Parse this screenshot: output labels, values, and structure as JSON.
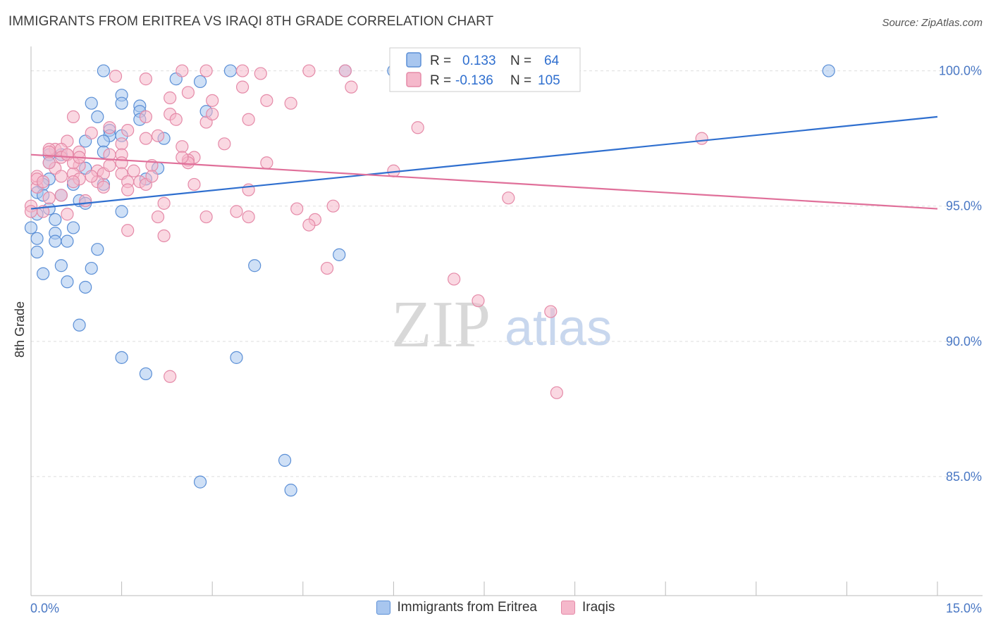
{
  "header": {
    "title": "IMMIGRANTS FROM ERITREA VS IRAQI 8TH GRADE CORRELATION CHART",
    "source": "Source: ZipAtlas.com"
  },
  "watermark": {
    "zip": "ZIP",
    "atlas": "atlas"
  },
  "colors": {
    "blue_fill": "#a8c6ef",
    "blue_stroke": "#5b8fd6",
    "blue_line": "#2f6fcf",
    "pink_fill": "#f5b8cb",
    "pink_stroke": "#e58aa8",
    "pink_line": "#e0709a",
    "tick_text": "#4a78c4",
    "grid": "#dddddd"
  },
  "legend": {
    "rows": [
      {
        "r_label": "R =",
        "r_value": "0.133",
        "n_label": "N =",
        "n_value": "64"
      },
      {
        "r_label": "R =",
        "r_value": "-0.136",
        "n_label": "N =",
        "n_value": "105"
      }
    ]
  },
  "bottom_legend": {
    "series_a": "Immigrants from Eritrea",
    "series_b": "Iraqis"
  },
  "chart_data": {
    "type": "scatter",
    "title": "IMMIGRANTS FROM ERITREA VS IRAQI 8TH GRADE CORRELATION CHART",
    "xlabel": "",
    "ylabel": "8th Grade",
    "xlim": [
      0,
      15
    ],
    "ylim": [
      80.6,
      100.9
    ],
    "x_tick_labels": [
      "0.0%",
      "15.0%"
    ],
    "y_ticks": [
      85,
      90,
      95,
      100
    ],
    "y_tick_labels": [
      "85.0%",
      "90.0%",
      "95.0%",
      "100.0%"
    ],
    "grid": true,
    "legend_placement": "top-center",
    "series": [
      {
        "name": "Immigrants from Eritrea",
        "color": "#a8c6ef",
        "trend": {
          "x": [
            0,
            15
          ],
          "y": [
            94.9,
            98.3
          ]
        },
        "points": [
          [
            1.2,
            100
          ],
          [
            3.3,
            100
          ],
          [
            5.2,
            100
          ],
          [
            6.0,
            100
          ],
          [
            6.7,
            100
          ],
          [
            13.2,
            100
          ],
          [
            2.4,
            99.7
          ],
          [
            2.8,
            99.6
          ],
          [
            1.5,
            99.1
          ],
          [
            1.5,
            98.8
          ],
          [
            1.0,
            98.8
          ],
          [
            1.8,
            98.7
          ],
          [
            1.8,
            98.5
          ],
          [
            2.9,
            98.5
          ],
          [
            1.1,
            98.3
          ],
          [
            1.8,
            98.2
          ],
          [
            1.3,
            97.8
          ],
          [
            1.3,
            97.6
          ],
          [
            1.5,
            97.6
          ],
          [
            2.2,
            97.5
          ],
          [
            0.9,
            97.4
          ],
          [
            1.2,
            97.4
          ],
          [
            1.2,
            97.0
          ],
          [
            0.3,
            96.9
          ],
          [
            0.5,
            96.9
          ],
          [
            0.3,
            96.6
          ],
          [
            0.9,
            96.4
          ],
          [
            2.1,
            96.4
          ],
          [
            0.3,
            96.0
          ],
          [
            1.9,
            96.0
          ],
          [
            0.2,
            95.8
          ],
          [
            0.7,
            95.8
          ],
          [
            1.2,
            95.8
          ],
          [
            0.1,
            95.5
          ],
          [
            0.2,
            95.4
          ],
          [
            0.8,
            95.2
          ],
          [
            0.9,
            95.1
          ],
          [
            0.3,
            94.9
          ],
          [
            1.5,
            94.8
          ],
          [
            0.1,
            94.7
          ],
          [
            0.4,
            94.5
          ],
          [
            0.7,
            94.2
          ],
          [
            0.0,
            94.2
          ],
          [
            0.4,
            94.0
          ],
          [
            0.1,
            93.8
          ],
          [
            0.4,
            93.7
          ],
          [
            0.6,
            93.7
          ],
          [
            1.1,
            93.4
          ],
          [
            0.1,
            93.3
          ],
          [
            5.1,
            93.2
          ],
          [
            0.5,
            92.8
          ],
          [
            1.0,
            92.7
          ],
          [
            3.7,
            92.8
          ],
          [
            0.2,
            92.5
          ],
          [
            0.6,
            92.2
          ],
          [
            0.9,
            92.0
          ],
          [
            0.8,
            90.6
          ],
          [
            1.5,
            89.4
          ],
          [
            3.4,
            89.4
          ],
          [
            1.9,
            88.8
          ],
          [
            4.2,
            85.6
          ],
          [
            2.8,
            84.8
          ],
          [
            4.3,
            84.5
          ],
          [
            0.5,
            95.4
          ]
        ]
      },
      {
        "name": "Iraqis",
        "color": "#f5b8cb",
        "trend": {
          "x": [
            0,
            15
          ],
          "y": [
            96.9,
            94.9
          ]
        },
        "points": [
          [
            2.5,
            100
          ],
          [
            2.9,
            100
          ],
          [
            3.5,
            100
          ],
          [
            4.6,
            100
          ],
          [
            5.2,
            100
          ],
          [
            7.8,
            100
          ],
          [
            3.8,
            99.9
          ],
          [
            1.4,
            99.8
          ],
          [
            1.9,
            99.7
          ],
          [
            3.5,
            99.4
          ],
          [
            5.3,
            99.4
          ],
          [
            2.6,
            99.2
          ],
          [
            2.3,
            99.0
          ],
          [
            3.9,
            98.9
          ],
          [
            3.0,
            98.9
          ],
          [
            4.3,
            98.8
          ],
          [
            2.3,
            98.4
          ],
          [
            1.9,
            98.3
          ],
          [
            0.7,
            98.3
          ],
          [
            3.6,
            98.2
          ],
          [
            2.4,
            98.2
          ],
          [
            2.9,
            98.1
          ],
          [
            6.4,
            97.9
          ],
          [
            1.6,
            97.8
          ],
          [
            1.0,
            97.7
          ],
          [
            2.1,
            97.6
          ],
          [
            11.1,
            97.5
          ],
          [
            1.9,
            97.5
          ],
          [
            0.6,
            97.4
          ],
          [
            3.2,
            97.3
          ],
          [
            1.5,
            97.3
          ],
          [
            2.5,
            97.2
          ],
          [
            0.4,
            97.1
          ],
          [
            0.5,
            97.1
          ],
          [
            0.3,
            97.1
          ],
          [
            0.8,
            97.0
          ],
          [
            1.5,
            96.9
          ],
          [
            0.6,
            96.9
          ],
          [
            0.5,
            96.8
          ],
          [
            2.7,
            96.8
          ],
          [
            2.6,
            96.7
          ],
          [
            1.5,
            96.6
          ],
          [
            2.6,
            96.6
          ],
          [
            3.9,
            96.6
          ],
          [
            2.0,
            96.5
          ],
          [
            0.8,
            96.5
          ],
          [
            0.4,
            96.4
          ],
          [
            1.1,
            96.3
          ],
          [
            1.5,
            96.2
          ],
          [
            6.0,
            96.3
          ],
          [
            0.7,
            96.2
          ],
          [
            1.2,
            96.2
          ],
          [
            0.1,
            96.1
          ],
          [
            0.8,
            96.0
          ],
          [
            0.7,
            95.9
          ],
          [
            1.1,
            95.9
          ],
          [
            1.8,
            95.9
          ],
          [
            1.6,
            95.9
          ],
          [
            1.9,
            95.8
          ],
          [
            2.7,
            95.8
          ],
          [
            0.1,
            95.7
          ],
          [
            1.2,
            95.7
          ],
          [
            1.6,
            95.6
          ],
          [
            3.6,
            95.6
          ],
          [
            7.9,
            95.3
          ],
          [
            0.9,
            95.2
          ],
          [
            2.2,
            95.1
          ],
          [
            0.0,
            95.0
          ],
          [
            4.4,
            94.9
          ],
          [
            5.0,
            95.0
          ],
          [
            0.2,
            94.8
          ],
          [
            0.6,
            94.7
          ],
          [
            3.4,
            94.8
          ],
          [
            3.6,
            94.6
          ],
          [
            2.9,
            94.6
          ],
          [
            2.1,
            94.6
          ],
          [
            4.7,
            94.5
          ],
          [
            4.6,
            94.3
          ],
          [
            1.6,
            94.1
          ],
          [
            2.2,
            93.9
          ],
          [
            4.9,
            92.7
          ],
          [
            7.0,
            92.3
          ],
          [
            7.4,
            91.5
          ],
          [
            8.6,
            91.1
          ],
          [
            2.3,
            88.7
          ],
          [
            8.7,
            88.1
          ],
          [
            0.1,
            96.0
          ],
          [
            0.6,
            96.9
          ],
          [
            0.3,
            97.0
          ],
          [
            1.3,
            97.9
          ],
          [
            1.3,
            96.9
          ],
          [
            0.3,
            96.6
          ],
          [
            2.0,
            96.1
          ],
          [
            0.5,
            96.1
          ],
          [
            0.0,
            94.8
          ],
          [
            0.3,
            95.3
          ],
          [
            1.3,
            96.5
          ],
          [
            2.5,
            96.8
          ],
          [
            0.5,
            95.4
          ],
          [
            1.0,
            96.1
          ],
          [
            0.2,
            95.9
          ],
          [
            0.7,
            96.6
          ],
          [
            3.0,
            98.4
          ],
          [
            1.7,
            96.3
          ],
          [
            0.8,
            96.8
          ]
        ]
      }
    ]
  }
}
